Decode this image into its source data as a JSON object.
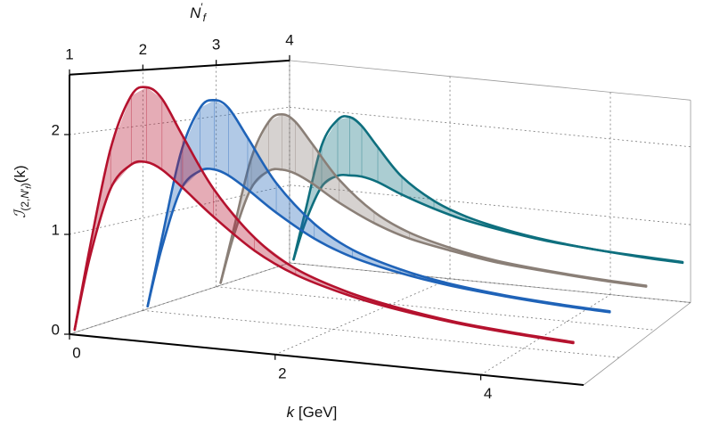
{
  "chart_data": {
    "type": "ribbon3d",
    "xlabel": [
      {
        "text": "k",
        "level": "base",
        "style": "italic"
      },
      {
        "text": " [GeV]",
        "level": "base",
        "style": "normal"
      }
    ],
    "ylabel": [
      {
        "text": "ℐ",
        "level": "base",
        "style": "italic"
      },
      {
        "text": "(2,",
        "level": "sub",
        "style": "normal"
      },
      {
        "text": "N",
        "level": "sub",
        "style": "italic"
      },
      {
        "text": "′",
        "level": "sub",
        "style": "normal"
      },
      {
        "text": "f",
        "level": "subsub",
        "style": "italic"
      },
      {
        "text": ")",
        "level": "sub",
        "style": "normal"
      },
      {
        "text": "(k)",
        "level": "base",
        "style": "normal"
      }
    ],
    "zlabel": [
      {
        "text": "N",
        "level": "base",
        "style": "italic"
      },
      {
        "text": "′",
        "level": "sup",
        "style": "normal"
      },
      {
        "text": "f",
        "level": "sub",
        "style": "italic"
      }
    ],
    "x": [
      0.05,
      0.2,
      0.4,
      0.6,
      0.75,
      0.9,
      1.1,
      1.4,
      1.8,
      2.2,
      2.7,
      3.2,
      3.8,
      4.4,
      4.9
    ],
    "series": [
      {
        "z": 1,
        "color": "#b5122e",
        "upper": [
          0.05,
          0.9,
          1.9,
          2.45,
          2.55,
          2.45,
          2.1,
          1.6,
          1.15,
          0.88,
          0.7,
          0.59,
          0.5,
          0.45,
          0.42
        ],
        "lower": [
          0.05,
          0.8,
          1.5,
          1.76,
          1.8,
          1.74,
          1.58,
          1.32,
          1.02,
          0.82,
          0.67,
          0.57,
          0.49,
          0.44,
          0.41
        ]
      },
      {
        "z": 2,
        "color": "#1f63b8",
        "upper": [
          0.05,
          0.8,
          1.75,
          2.25,
          2.35,
          2.28,
          1.98,
          1.52,
          1.12,
          0.88,
          0.72,
          0.62,
          0.55,
          0.51,
          0.49
        ],
        "lower": [
          0.05,
          0.7,
          1.35,
          1.57,
          1.6,
          1.55,
          1.42,
          1.2,
          0.96,
          0.8,
          0.68,
          0.6,
          0.54,
          0.5,
          0.48
        ]
      },
      {
        "z": 3,
        "color": "#8a7f77",
        "upper": [
          0.05,
          0.7,
          1.55,
          2.0,
          2.1,
          2.03,
          1.78,
          1.4,
          1.06,
          0.86,
          0.72,
          0.63,
          0.57,
          0.53,
          0.51
        ],
        "lower": [
          0.05,
          0.62,
          1.2,
          1.42,
          1.45,
          1.42,
          1.32,
          1.13,
          0.93,
          0.79,
          0.69,
          0.61,
          0.56,
          0.52,
          0.5
        ]
      },
      {
        "z": 4,
        "color": "#0e6f7e",
        "upper": [
          0.05,
          0.7,
          1.55,
          1.9,
          1.95,
          1.85,
          1.6,
          1.25,
          0.98,
          0.82,
          0.7,
          0.62,
          0.56,
          0.53,
          0.51
        ],
        "lower": [
          0.05,
          0.55,
          1.02,
          1.18,
          1.2,
          1.2,
          1.15,
          1.02,
          0.88,
          0.77,
          0.68,
          0.61,
          0.56,
          0.52,
          0.5
        ]
      }
    ],
    "xlim": [
      0,
      5
    ],
    "xticks": [
      0,
      2,
      4
    ],
    "ylim": [
      0,
      2.6
    ],
    "yticks": [
      0,
      1,
      2
    ],
    "zlim": [
      1,
      4
    ],
    "zticks": [
      1,
      2,
      3,
      4
    ],
    "grid": true
  }
}
